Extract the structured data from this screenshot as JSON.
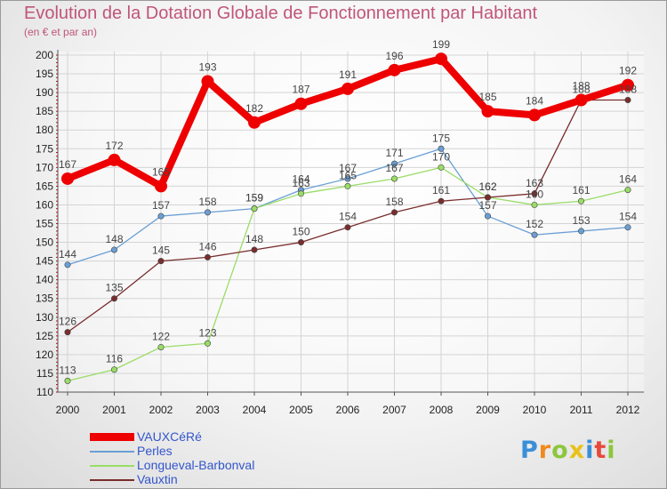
{
  "title": "Evolution de la Dotation Globale de Fonctionnement par Habitant",
  "subtitle": "(en € et par an)",
  "logo": {
    "text": "Proxiti",
    "colors": [
      "#3b8fd8",
      "#f08a1c",
      "#8cc63e",
      "#e8c21a",
      "#3b8fd8",
      "#e64a3b",
      "#8cc63e"
    ]
  },
  "chart_data": {
    "type": "line",
    "title": "Evolution de la Dotation Globale de Fonctionnement par Habitant",
    "subtitle": "(en € et par an)",
    "x": [
      "2000",
      "2001",
      "2002",
      "2003",
      "2004",
      "2005",
      "2006",
      "2007",
      "2008",
      "2009",
      "2010",
      "2011",
      "2012"
    ],
    "ylim": [
      110,
      200
    ],
    "yticks": [
      "110",
      "115",
      "120",
      "125",
      "130",
      "135",
      "140",
      "145",
      "150",
      "155",
      "160",
      "165",
      "170",
      "175",
      "180",
      "185",
      "190",
      "195",
      "200"
    ],
    "grid": true,
    "legend": "bottom-left",
    "series": [
      {
        "name": "VAUXCéRé",
        "color": "#ee0000",
        "values": [
          167,
          172,
          165,
          193,
          182,
          187,
          191,
          196,
          199,
          185,
          184,
          188,
          192
        ],
        "labels": [
          "167",
          "172",
          "165",
          "193",
          "182",
          "187",
          "191",
          "196",
          "199",
          "185",
          "184",
          "188",
          "192"
        ]
      },
      {
        "name": "Perles",
        "color": "#6a9fd4",
        "values": [
          144,
          148,
          157,
          158,
          159,
          164,
          167,
          171,
          175,
          157,
          152,
          153,
          154
        ],
        "labels": [
          "144",
          "148",
          "157",
          "158",
          "159",
          "164",
          "167",
          "171",
          "175",
          "157",
          "152",
          "153",
          "154"
        ]
      },
      {
        "name": "Longueval-Barbonval",
        "color": "#99dd66",
        "values": [
          113,
          116,
          122,
          123,
          159,
          163,
          165,
          167,
          170,
          162,
          160,
          161,
          164
        ],
        "labels": [
          "113",
          "116",
          "122",
          "123",
          "159",
          "163",
          "165",
          "167",
          "170",
          "162",
          "160",
          "161",
          "164"
        ]
      },
      {
        "name": "Vauxtin",
        "color": "#7a2d2d",
        "values": [
          126,
          135,
          145,
          146,
          148,
          150,
          154,
          158,
          161,
          162,
          163,
          188,
          188
        ],
        "labels": [
          "126",
          "135",
          "145",
          "146",
          "148",
          "150",
          "154",
          "158",
          "161",
          "162",
          "163",
          "188",
          "188"
        ]
      }
    ]
  }
}
